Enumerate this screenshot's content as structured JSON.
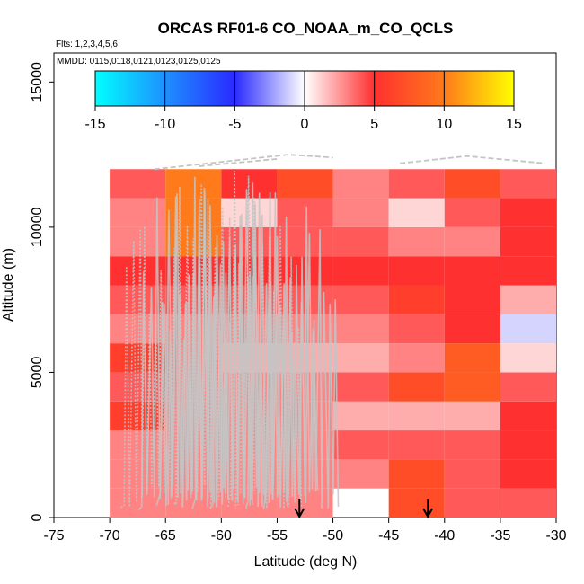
{
  "chart_data": {
    "type": "heatmap",
    "title": "ORCAS RF01-6 CO_NOAA_m_CO_QCLS",
    "flights_note": "Flts: 1,2,3,4,5,6",
    "dates_note": "MMDD: 0115,0118,0121,0123,0125,0125",
    "xlabel": "Latitude (deg N)",
    "ylabel": "Altitude (m)",
    "xlim": [
      -75,
      -30
    ],
    "ylim": [
      0,
      16000
    ],
    "x_ticks": [
      -75,
      -70,
      -65,
      -60,
      -55,
      -50,
      -45,
      -40,
      -35,
      -30
    ],
    "y_ticks": [
      0,
      5000,
      10000,
      15000
    ],
    "colorbar": {
      "range": [
        -15,
        15
      ],
      "ticks": [
        -15,
        -10,
        -5,
        0,
        5,
        10,
        15
      ]
    },
    "lat_bins": [
      -70,
      -65,
      -60,
      -55,
      -50,
      -45,
      -40,
      -35
    ],
    "alt_bin_size": 1000,
    "alt_bins_bottom": [
      0,
      1000,
      2000,
      3000,
      4000,
      5000,
      6000,
      7000,
      8000,
      9000,
      10000,
      11000
    ],
    "values": [
      [
        3,
        3,
        3,
        3,
        null,
        7,
        4,
        4
      ],
      [
        3,
        3,
        3,
        3,
        3,
        7,
        4,
        5
      ],
      [
        3,
        3,
        3,
        3,
        4,
        4,
        4,
        5
      ],
      [
        6,
        3,
        3,
        3,
        2,
        2,
        2,
        5
      ],
      [
        4,
        3,
        3,
        3,
        4,
        7,
        8,
        4
      ],
      [
        6,
        3,
        2,
        2,
        2,
        3,
        8,
        1
      ],
      [
        3,
        3,
        3,
        3,
        3,
        4,
        5,
        -1
      ],
      [
        4,
        4,
        4,
        4,
        4,
        6,
        5,
        2
      ],
      [
        5,
        5,
        5,
        5,
        5,
        5,
        5,
        5
      ],
      [
        3,
        10,
        4,
        4,
        4,
        3,
        3,
        5
      ],
      [
        3,
        10,
        1,
        4,
        3,
        1,
        4,
        5
      ],
      [
        4,
        10,
        5,
        7,
        3,
        4,
        7,
        4
      ]
    ],
    "arrows_lat": [
      -53,
      -41.5
    ]
  }
}
